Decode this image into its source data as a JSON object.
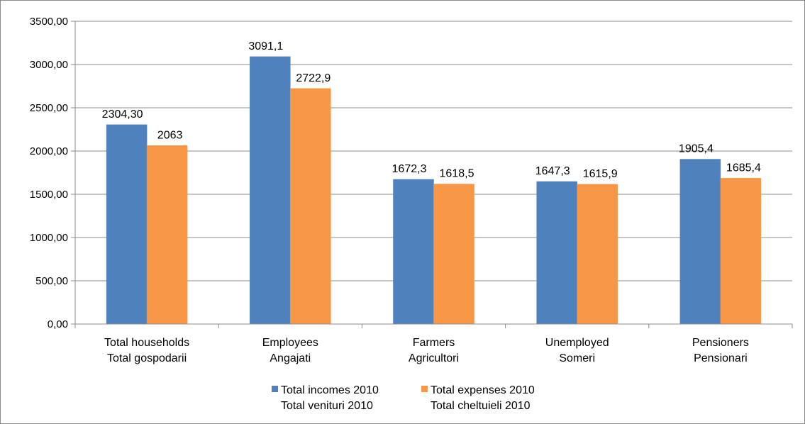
{
  "chart_data": {
    "type": "bar",
    "categories": [
      [
        "Total households",
        "Total gospodarii"
      ],
      [
        "Employees",
        "Angajati"
      ],
      [
        "Farmers",
        "Agricultori"
      ],
      [
        "Unemployed",
        "Someri"
      ],
      [
        "Pensioners",
        "Pensionari"
      ]
    ],
    "series": [
      {
        "name": [
          "Total incomes 2010",
          "Total venituri 2010"
        ],
        "color": "#4f81bd",
        "values": [
          2304.3,
          3091.1,
          1672.3,
          1647.3,
          1905.4
        ],
        "labels": [
          "2304,30",
          "3091,1",
          "1672,3",
          "1647,3",
          "1905,4"
        ]
      },
      {
        "name": [
          "Total expenses 2010",
          "Total cheltuieli 2010"
        ],
        "color": "#f79646",
        "values": [
          2063,
          2722.9,
          1618.5,
          1615.9,
          1685.4
        ],
        "labels": [
          "2063",
          "2722,9",
          "1618,5",
          "1615,9",
          "1685,4"
        ]
      }
    ],
    "ylim": [
      0,
      3500
    ],
    "yticks": [
      0,
      500,
      1000,
      1500,
      2000,
      2500,
      3000,
      3500
    ],
    "ytick_labels": [
      "0,00",
      "500,00",
      "1000,00",
      "1500,00",
      "2000,00",
      "2500,00",
      "3000,00",
      "3500,00"
    ],
    "grid": true,
    "legend_position": "bottom"
  }
}
